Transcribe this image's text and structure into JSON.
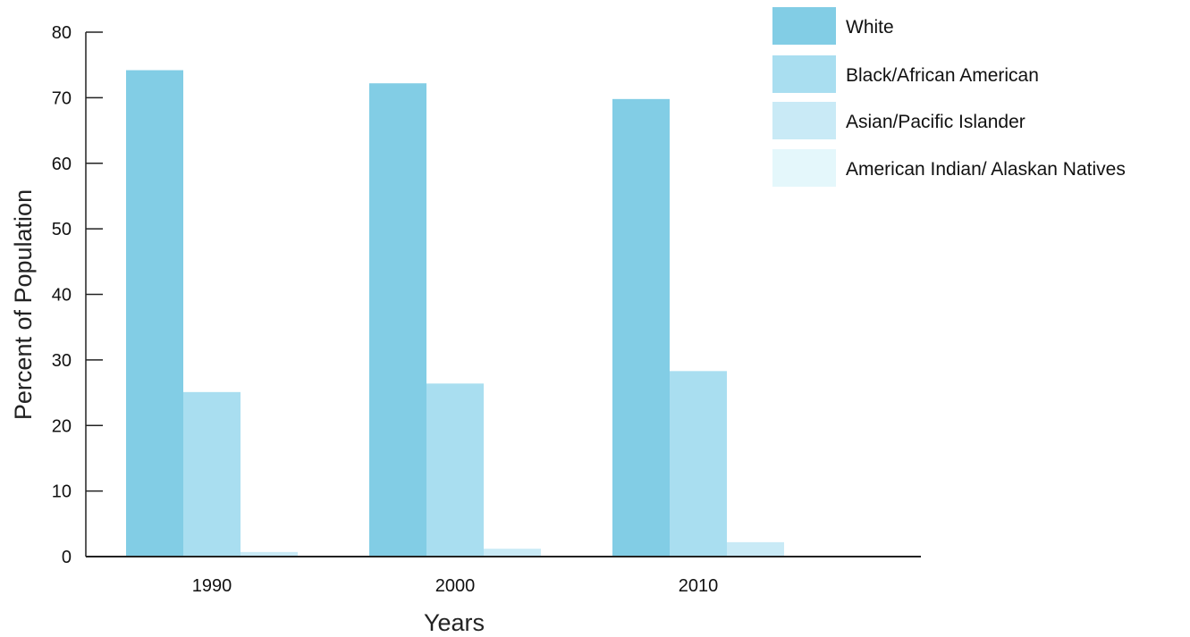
{
  "chart_data": {
    "type": "bar",
    "categories": [
      "1990",
      "2000",
      "2010"
    ],
    "series": [
      {
        "name": "White",
        "values": [
          74.2,
          72.2,
          69.8
        ],
        "color": "#82cde5"
      },
      {
        "name": "Black/African American",
        "values": [
          25.1,
          26.4,
          28.3
        ],
        "color": "#a9def0"
      },
      {
        "name": "Asian/Pacific Islander",
        "values": [
          0.7,
          1.2,
          2.2
        ],
        "color": "#c9eaf6"
      },
      {
        "name": "American Indian/ Alaskan Natives",
        "values": [
          0.1,
          0.1,
          0.1
        ],
        "color": "#e4f7fb"
      }
    ],
    "xlabel": "Years",
    "ylabel": "Percent of Population",
    "ylim": [
      0,
      80
    ],
    "yticks": [
      0,
      10,
      20,
      30,
      40,
      50,
      60,
      70,
      80
    ],
    "grid": false,
    "legend_position": "top-right"
  }
}
